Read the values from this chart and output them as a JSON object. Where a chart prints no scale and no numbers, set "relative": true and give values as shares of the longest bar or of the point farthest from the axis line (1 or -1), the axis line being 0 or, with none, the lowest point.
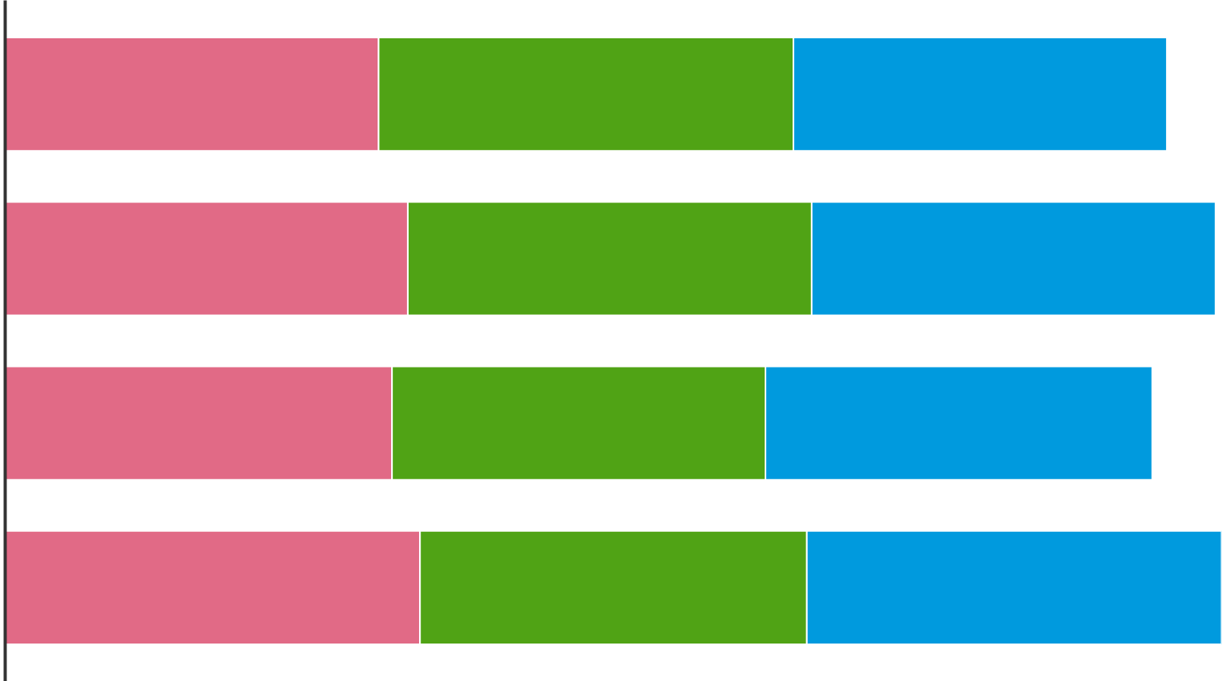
{
  "chart_data": {
    "type": "bar",
    "orientation": "horizontal",
    "stacked": true,
    "relative": true,
    "categories": [
      null,
      null,
      null,
      null
    ],
    "series": [
      {
        "color": "#e16a86",
        "values": [
          0.307,
          0.331,
          0.318,
          0.341
        ]
      },
      {
        "color": "#50a315",
        "values": [
          0.341,
          0.332,
          0.307,
          0.318
        ]
      },
      {
        "color": "#009ade",
        "values": [
          0.307,
          0.332,
          0.318,
          0.341
        ]
      }
    ],
    "grid": false
  }
}
